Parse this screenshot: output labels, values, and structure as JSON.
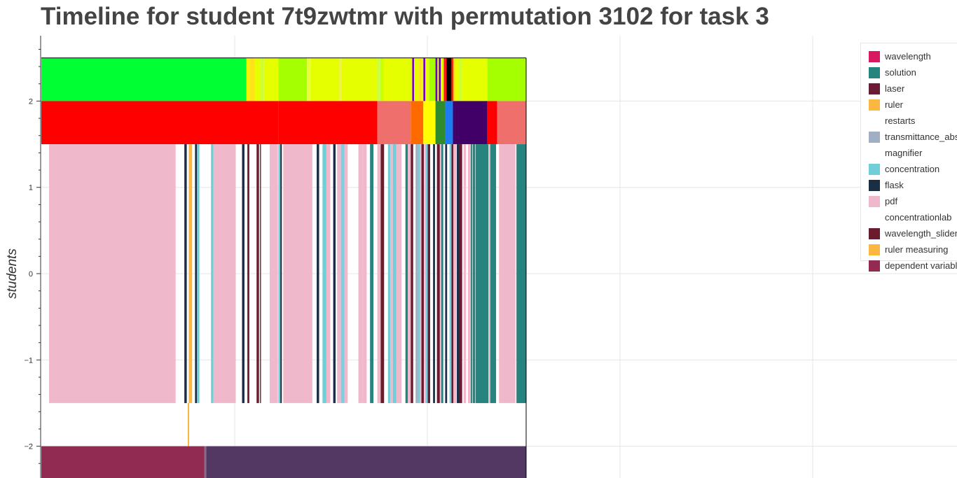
{
  "chart_data": {
    "type": "timeline",
    "title": "Timeline for student 7t9zwtmr with permutation 3102 for task 3",
    "ylabel": "students",
    "xlabel": "",
    "ylim": [
      -2.4,
      2.75
    ],
    "xlim": [
      0,
      100
    ],
    "y_ticks": [
      {
        "value": 2,
        "label": "2"
      },
      {
        "value": 1,
        "label": "1"
      },
      {
        "value": 0,
        "label": "0"
      },
      {
        "value": -1,
        "label": "−1"
      },
      {
        "value": -2,
        "label": "−2"
      }
    ],
    "grid": true,
    "legend_position": "top-right",
    "legend": [
      {
        "name": "wavelength",
        "color": "#d81b60",
        "has_swatch": true
      },
      {
        "name": "solution",
        "color": "#26837d",
        "has_swatch": true
      },
      {
        "name": "laser",
        "color": "#6b1b33",
        "has_swatch": true
      },
      {
        "name": "ruler",
        "color": "#fbb741",
        "has_swatch": true
      },
      {
        "name": "restarts",
        "color": "#ffffff",
        "has_swatch": false
      },
      {
        "name": "transmittance_abs",
        "color": "#a1afc2",
        "has_swatch": true
      },
      {
        "name": "magnifier",
        "color": "#ffffff",
        "has_swatch": false
      },
      {
        "name": "concentration",
        "color": "#6fcfd9",
        "has_swatch": true
      },
      {
        "name": "flask",
        "color": "#1b2e44",
        "has_swatch": true
      },
      {
        "name": "pdf",
        "color": "#f0b8cb",
        "has_swatch": true
      },
      {
        "name": "concentrationlab",
        "color": "#ffffff",
        "has_swatch": false
      },
      {
        "name": "wavelength_slider",
        "color": "#6b1b2e",
        "has_swatch": true
      },
      {
        "name": "ruler measuring",
        "color": "#fbb741",
        "has_swatch": true
      },
      {
        "name": "dependent variable",
        "color": "#912b52",
        "has_swatch": true
      }
    ],
    "rows": [
      {
        "name": "top",
        "y_range": [
          2,
          2.5
        ],
        "segments": [
          {
            "start": 0,
            "end": 42.3,
            "color": "#00ff33"
          },
          {
            "start": 42.3,
            "end": 43.0,
            "color": "#f5f500"
          },
          {
            "start": 43.0,
            "end": 44.0,
            "color": "#ffe21a"
          },
          {
            "start": 44.0,
            "end": 45.2,
            "color": "#e6ff00"
          },
          {
            "start": 45.2,
            "end": 45.9,
            "color": "#ccff33"
          },
          {
            "start": 45.9,
            "end": 48.9,
            "color": "#e6ff00"
          },
          {
            "start": 48.9,
            "end": 54.8,
            "color": "#a6ff00"
          },
          {
            "start": 54.8,
            "end": 55.6,
            "color": "#e6ff33"
          },
          {
            "start": 55.6,
            "end": 61.5,
            "color": "#e6ff00"
          },
          {
            "start": 61.5,
            "end": 62.0,
            "color": "#f0f055"
          },
          {
            "start": 62.0,
            "end": 69.3,
            "color": "#e6ff00"
          },
          {
            "start": 69.3,
            "end": 69.9,
            "color": "#c6ff4a"
          },
          {
            "start": 69.9,
            "end": 70.6,
            "color": "#ccff00"
          },
          {
            "start": 70.6,
            "end": 76.5,
            "color": "#e6ff00"
          },
          {
            "start": 76.5,
            "end": 76.9,
            "color": "#7a00c8"
          },
          {
            "start": 76.9,
            "end": 77.9,
            "color": "#e6ff00"
          },
          {
            "start": 77.9,
            "end": 78.4,
            "color": "#ffe21a"
          },
          {
            "start": 78.4,
            "end": 78.8,
            "color": "#e6ff00"
          },
          {
            "start": 78.8,
            "end": 79.2,
            "color": "#7a00c8"
          },
          {
            "start": 79.2,
            "end": 80.0,
            "color": "#e6ff00"
          },
          {
            "start": 80.0,
            "end": 81.3,
            "color": "#a6ff00"
          },
          {
            "start": 81.3,
            "end": 81.7,
            "color": "#6a00c8"
          },
          {
            "start": 81.7,
            "end": 82.0,
            "color": "#e6ff00"
          },
          {
            "start": 82.0,
            "end": 82.4,
            "color": "#5a00b8"
          },
          {
            "start": 82.4,
            "end": 83.0,
            "color": "#e6ff00"
          },
          {
            "start": 83.0,
            "end": 83.6,
            "color": "#ff1a1a"
          },
          {
            "start": 83.6,
            "end": 84.6,
            "color": "#000000"
          },
          {
            "start": 84.6,
            "end": 85.0,
            "color": "#ff2a00"
          },
          {
            "start": 85.0,
            "end": 85.4,
            "color": "#ffe21a"
          },
          {
            "start": 85.4,
            "end": 86.2,
            "color": "#e6ff00"
          },
          {
            "start": 86.2,
            "end": 86.8,
            "color": "#ccff33"
          },
          {
            "start": 86.8,
            "end": 92.0,
            "color": "#e6ff00"
          },
          {
            "start": 92.0,
            "end": 100,
            "color": "#a6ff00"
          }
        ]
      },
      {
        "name": "second",
        "y_range": [
          1.5,
          2
        ],
        "segments": [
          {
            "start": 0,
            "end": 48.9,
            "color": "#ff0000"
          },
          {
            "start": 48.9,
            "end": 69.3,
            "color": "#ff0000"
          },
          {
            "start": 69.3,
            "end": 76.2,
            "color": "#ef6f6c"
          },
          {
            "start": 76.2,
            "end": 78.8,
            "color": "#ff6a00"
          },
          {
            "start": 78.8,
            "end": 81.3,
            "color": "#ffff00"
          },
          {
            "start": 81.3,
            "end": 83.3,
            "color": "#2e8b2e"
          },
          {
            "start": 83.3,
            "end": 84.9,
            "color": "#1e7cf0"
          },
          {
            "start": 84.9,
            "end": 85.4,
            "color": "#400068"
          },
          {
            "start": 85.4,
            "end": 92.0,
            "color": "#410068"
          },
          {
            "start": 92.0,
            "end": 94.0,
            "color": "#ff0000"
          },
          {
            "start": 94.0,
            "end": 100,
            "color": "#ef6f6c"
          }
        ]
      },
      {
        "name": "middle",
        "y_range": [
          -1.5,
          1.5
        ],
        "segments": [
          {
            "start": 1.6,
            "end": 27.7,
            "color": "#f0b8cb"
          },
          {
            "start": 29.5,
            "end": 30.0,
            "color": "#1b2e44"
          },
          {
            "start": 30.4,
            "end": 31.1,
            "color": "#fbb741"
          },
          {
            "start": 31.7,
            "end": 32.1,
            "color": "#1b2e44"
          },
          {
            "start": 32.1,
            "end": 32.6,
            "color": "#6fcfd9"
          },
          {
            "start": 35.0,
            "end": 35.5,
            "color": "#6fcfd9"
          },
          {
            "start": 35.5,
            "end": 40.1,
            "color": "#f0b8cb"
          },
          {
            "start": 41.4,
            "end": 41.9,
            "color": "#1b2e44"
          },
          {
            "start": 42.5,
            "end": 42.9,
            "color": "#6b1b2e"
          },
          {
            "start": 44.4,
            "end": 44.9,
            "color": "#6b1b2e"
          },
          {
            "start": 45.1,
            "end": 45.3,
            "color": "#6b1b33"
          },
          {
            "start": 47.1,
            "end": 48.8,
            "color": "#f0b8cb"
          },
          {
            "start": 48.9,
            "end": 49.3,
            "color": "#6fcfd9"
          },
          {
            "start": 49.3,
            "end": 49.6,
            "color": "#1b2e44"
          },
          {
            "start": 49.9,
            "end": 55.9,
            "color": "#f0b8cb"
          },
          {
            "start": 56.8,
            "end": 57.3,
            "color": "#1b2e44"
          },
          {
            "start": 58.0,
            "end": 58.8,
            "color": "#6fcfd9"
          },
          {
            "start": 58.8,
            "end": 59.6,
            "color": "#f0b8cb"
          },
          {
            "start": 60.2,
            "end": 60.7,
            "color": "#1b2e44"
          },
          {
            "start": 61.0,
            "end": 61.8,
            "color": "#f0b8cb"
          },
          {
            "start": 61.8,
            "end": 62.5,
            "color": "#7fcde0"
          },
          {
            "start": 62.5,
            "end": 63.2,
            "color": "#f0b8cb"
          },
          {
            "start": 65.4,
            "end": 66.3,
            "color": "#f0b8cb"
          },
          {
            "start": 66.3,
            "end": 67.1,
            "color": "#f0b8cb"
          },
          {
            "start": 67.8,
            "end": 68.5,
            "color": "#26837d"
          },
          {
            "start": 69.3,
            "end": 70.0,
            "color": "#f0b8cb"
          },
          {
            "start": 70.0,
            "end": 70.7,
            "color": "#6b1b2e"
          },
          {
            "start": 71.5,
            "end": 72.0,
            "color": "#6fcfd9"
          },
          {
            "start": 72.0,
            "end": 72.5,
            "color": "#f0b8cb"
          },
          {
            "start": 72.5,
            "end": 73.2,
            "color": "#6fcfd9"
          },
          {
            "start": 73.2,
            "end": 74.3,
            "color": "#f0b8cb"
          },
          {
            "start": 75.1,
            "end": 75.6,
            "color": "#26837d"
          },
          {
            "start": 75.6,
            "end": 76.2,
            "color": "#f0b8cb"
          },
          {
            "start": 76.2,
            "end": 76.7,
            "color": "#6b1b2e"
          },
          {
            "start": 77.2,
            "end": 77.7,
            "color": "#a1afc2"
          },
          {
            "start": 77.7,
            "end": 78.1,
            "color": "#6fcfd9"
          },
          {
            "start": 78.1,
            "end": 78.4,
            "color": "#f0b8cb"
          },
          {
            "start": 78.4,
            "end": 78.9,
            "color": "#6b1b2e"
          },
          {
            "start": 79.0,
            "end": 79.3,
            "color": "#f0b8cb"
          },
          {
            "start": 79.3,
            "end": 79.7,
            "color": "#6fcfd9"
          },
          {
            "start": 79.7,
            "end": 80.2,
            "color": "#6b1b33"
          },
          {
            "start": 80.8,
            "end": 81.2,
            "color": "#1b2e44"
          },
          {
            "start": 81.6,
            "end": 82.2,
            "color": "#6b1b2e"
          },
          {
            "start": 82.2,
            "end": 82.5,
            "color": "#f0b8cb"
          },
          {
            "start": 82.5,
            "end": 82.9,
            "color": "#26837d"
          },
          {
            "start": 83.3,
            "end": 83.7,
            "color": "#1b2e44"
          },
          {
            "start": 84.2,
            "end": 84.6,
            "color": "#6fcfd9"
          },
          {
            "start": 84.6,
            "end": 85.0,
            "color": "#6b1b2e"
          },
          {
            "start": 85.0,
            "end": 85.6,
            "color": "#f0b8cb"
          },
          {
            "start": 85.7,
            "end": 86.2,
            "color": "#1b2e44"
          },
          {
            "start": 86.2,
            "end": 86.8,
            "color": "#6b1b33"
          },
          {
            "start": 87.1,
            "end": 87.6,
            "color": "#f0b8cb"
          },
          {
            "start": 88.0,
            "end": 88.6,
            "color": "#f0b8cb"
          },
          {
            "start": 88.6,
            "end": 88.9,
            "color": "#26837d"
          },
          {
            "start": 89.0,
            "end": 89.5,
            "color": "#26837d"
          },
          {
            "start": 89.6,
            "end": 92.2,
            "color": "#26837d"
          },
          {
            "start": 92.2,
            "end": 92.6,
            "color": "#f0b8cb"
          },
          {
            "start": 92.6,
            "end": 93.8,
            "color": "#26837d"
          },
          {
            "start": 94.4,
            "end": 97.8,
            "color": "#f0b8cb"
          },
          {
            "start": 98.0,
            "end": 100,
            "color": "#26837d"
          }
        ]
      },
      {
        "name": "ruler-line",
        "y_range": [
          -2.0,
          -1.5
        ],
        "segments": [
          {
            "start": 30.2,
            "end": 30.5,
            "color": "#fbb741"
          }
        ]
      },
      {
        "name": "bottom",
        "y_range": [
          -2.4,
          -2.0
        ],
        "segments": [
          {
            "start": 0,
            "end": 33.6,
            "color": "#912b52"
          },
          {
            "start": 33.6,
            "end": 34.0,
            "color": "#8a6a8a"
          },
          {
            "start": 34.0,
            "end": 100,
            "color": "#523863"
          }
        ]
      }
    ]
  }
}
